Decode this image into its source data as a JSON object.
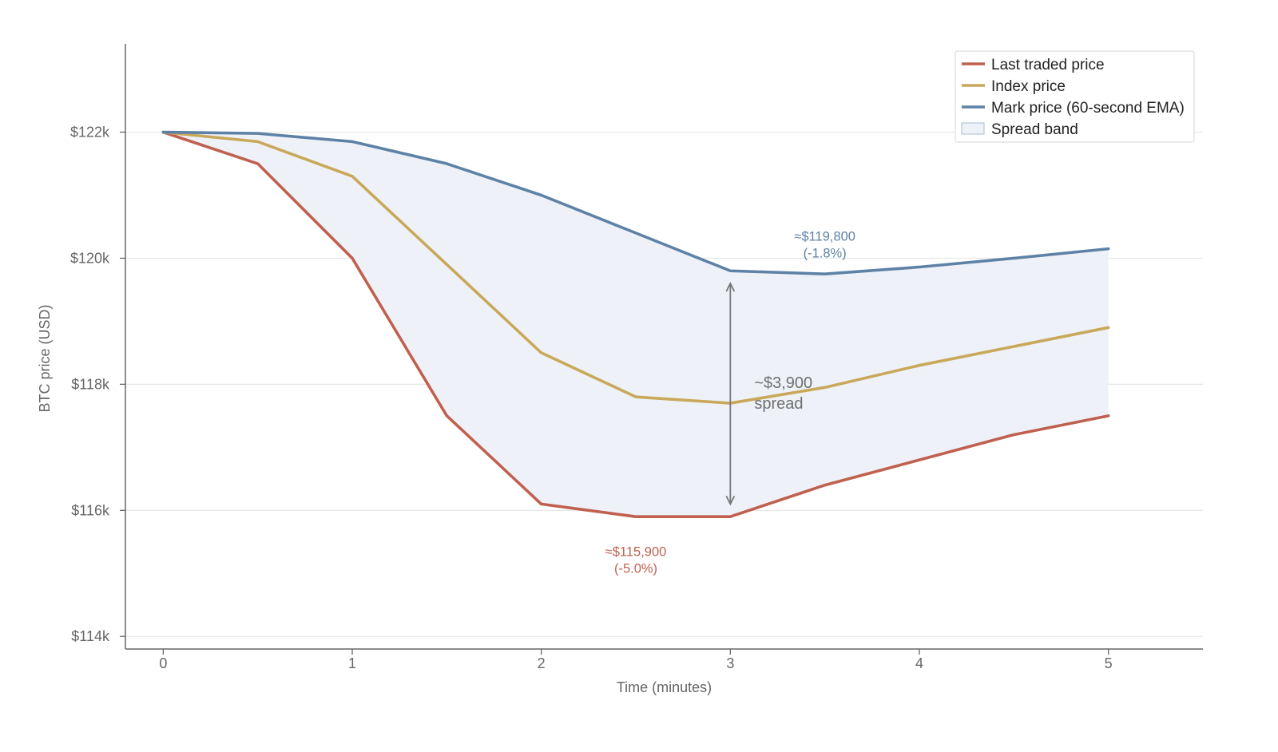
{
  "chart_data": {
    "type": "line",
    "xlabel": "Time (minutes)",
    "ylabel": "BTC price (USD)",
    "xlim": [
      -0.2,
      5.5
    ],
    "ylim": [
      113800,
      123400
    ],
    "x_ticks": [
      0,
      1,
      2,
      3,
      4,
      5
    ],
    "x_tick_labels": [
      "0",
      "1",
      "2",
      "3",
      "4",
      "5"
    ],
    "y_ticks": [
      114000,
      116000,
      118000,
      120000,
      122000
    ],
    "y_tick_labels": [
      "$114k",
      "$116k",
      "$118k",
      "$120k",
      "$122k"
    ],
    "grid": "horizontal",
    "legend_position": "top-right",
    "x": [
      0,
      0.5,
      1,
      1.5,
      2,
      2.5,
      3,
      3.5,
      4,
      4.5,
      5
    ],
    "series": [
      {
        "name": "Last traded price",
        "color": "#c0604f",
        "values": [
          122000,
          121500,
          120000,
          117500,
          116100,
          115900,
          115900,
          116400,
          116800,
          117200,
          117500
        ]
      },
      {
        "name": "Index price",
        "color": "#c9a85a",
        "values": [
          122000,
          121850,
          121300,
          119900,
          118500,
          117800,
          117700,
          117950,
          118300,
          118600,
          118900
        ]
      },
      {
        "name": "Mark price (60-second EMA)",
        "color": "#5e82a6",
        "values": [
          122000,
          121980,
          121850,
          121500,
          121000,
          120400,
          119800,
          119750,
          119860,
          120000,
          120150
        ]
      }
    ],
    "band": {
      "name": "Spread band",
      "fill": "#eef2f8",
      "edge": "#a9bdd4",
      "between": [
        "Last traded price",
        "Mark price (60-second EMA)"
      ]
    },
    "annotations": [
      {
        "lines": [
          "≈$119,800",
          "(-1.8%)"
        ],
        "x": 3.5,
        "y": 120200,
        "color": "#5e82a6"
      },
      {
        "lines": [
          "≈$115,900",
          "(-5.0%)"
        ],
        "x": 2.5,
        "y": 115200,
        "color": "#c0604f"
      }
    ],
    "spread_marker": {
      "x": 3,
      "from": 116100,
      "to": 119600,
      "label_lines": [
        "~$3,900",
        "spread"
      ],
      "color": "#777777"
    }
  }
}
